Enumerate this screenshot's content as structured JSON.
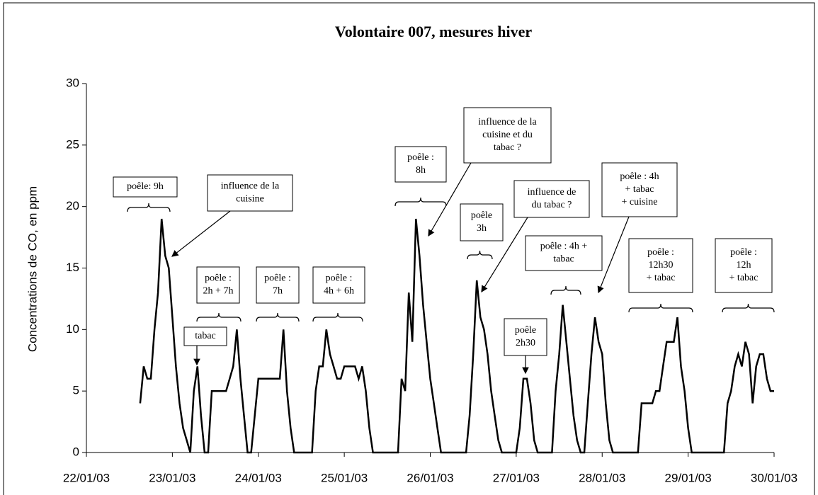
{
  "chart_data": {
    "type": "line",
    "title": "Volontaire 007, mesures hiver",
    "y_label": "Concentrations de CO, en ppm",
    "color": "#000000",
    "ylim": [
      0,
      30
    ],
    "yticks": [
      0,
      5,
      10,
      15,
      20,
      25,
      30
    ],
    "xlim": [
      "2003-01-22",
      "2003-01-30"
    ],
    "xticks": [
      {
        "value": "2003-01-22",
        "label": "22/01/03"
      },
      {
        "value": "2003-01-23",
        "label": "23/01/03"
      },
      {
        "value": "2003-01-24",
        "label": "24/01/03"
      },
      {
        "value": "2003-01-25",
        "label": "25/01/03"
      },
      {
        "value": "2003-01-26",
        "label": "26/01/03"
      },
      {
        "value": "2003-01-27",
        "label": "27/01/03"
      },
      {
        "value": "2003-01-28",
        "label": "28/01/03"
      },
      {
        "value": "2003-01-29",
        "label": "29/01/03"
      },
      {
        "value": "2003-01-30",
        "label": "30/01/03"
      }
    ],
    "x": [
      "2003-01-22T15:00",
      "2003-01-22T16:00",
      "2003-01-22T17:00",
      "2003-01-22T18:00",
      "2003-01-22T19:00",
      "2003-01-22T20:00",
      "2003-01-22T21:00",
      "2003-01-22T22:00",
      "2003-01-22T23:00",
      "2003-01-23T00:00",
      "2003-01-23T01:00",
      "2003-01-23T02:00",
      "2003-01-23T03:00",
      "2003-01-23T04:00",
      "2003-01-23T05:00",
      "2003-01-23T06:00",
      "2003-01-23T07:00",
      "2003-01-23T08:00",
      "2003-01-23T09:00",
      "2003-01-23T10:00",
      "2003-01-23T11:00",
      "2003-01-23T15:00",
      "2003-01-23T16:00",
      "2003-01-23T17:00",
      "2003-01-23T18:00",
      "2003-01-23T19:00",
      "2003-01-23T20:00",
      "2003-01-23T21:00",
      "2003-01-23T22:00",
      "2003-01-23T23:00",
      "2003-01-24T00:00",
      "2003-01-24T06:00",
      "2003-01-24T07:00",
      "2003-01-24T08:00",
      "2003-01-24T09:00",
      "2003-01-24T10:00",
      "2003-01-24T15:00",
      "2003-01-24T16:00",
      "2003-01-24T17:00",
      "2003-01-24T18:00",
      "2003-01-24T19:00",
      "2003-01-24T20:00",
      "2003-01-24T21:00",
      "2003-01-24T22:00",
      "2003-01-24T23:00",
      "2003-01-25T00:00",
      "2003-01-25T03:00",
      "2003-01-25T04:00",
      "2003-01-25T05:00",
      "2003-01-25T06:00",
      "2003-01-25T07:00",
      "2003-01-25T08:00",
      "2003-01-25T15:00",
      "2003-01-25T16:00",
      "2003-01-25T17:00",
      "2003-01-25T18:00",
      "2003-01-25T19:00",
      "2003-01-25T20:00",
      "2003-01-25T21:00",
      "2003-01-25T22:00",
      "2003-01-25T23:00",
      "2003-01-26T00:00",
      "2003-01-26T01:00",
      "2003-01-26T02:00",
      "2003-01-26T03:00",
      "2003-01-26T10:00",
      "2003-01-26T11:00",
      "2003-01-26T12:00",
      "2003-01-26T13:00",
      "2003-01-26T14:00",
      "2003-01-26T15:00",
      "2003-01-26T16:00",
      "2003-01-26T17:00",
      "2003-01-26T18:00",
      "2003-01-26T19:00",
      "2003-01-26T20:00",
      "2003-01-27T00:00",
      "2003-01-27T01:00",
      "2003-01-27T02:00",
      "2003-01-27T03:00",
      "2003-01-27T04:00",
      "2003-01-27T05:00",
      "2003-01-27T06:00",
      "2003-01-27T10:00",
      "2003-01-27T11:00",
      "2003-01-27T12:00",
      "2003-01-27T13:00",
      "2003-01-27T14:00",
      "2003-01-27T15:00",
      "2003-01-27T16:00",
      "2003-01-27T17:00",
      "2003-01-27T18:00",
      "2003-01-27T19:00",
      "2003-01-27T20:00",
      "2003-01-27T21:00",
      "2003-01-27T22:00",
      "2003-01-27T23:00",
      "2003-01-28T00:00",
      "2003-01-28T01:00",
      "2003-01-28T02:00",
      "2003-01-28T03:00",
      "2003-01-28T10:00",
      "2003-01-28T11:00",
      "2003-01-28T14:00",
      "2003-01-28T15:00",
      "2003-01-28T16:00",
      "2003-01-28T17:00",
      "2003-01-28T18:00",
      "2003-01-28T20:00",
      "2003-01-28T21:00",
      "2003-01-28T22:00",
      "2003-01-28T23:00",
      "2003-01-29T00:00",
      "2003-01-29T01:00",
      "2003-01-29T10:00",
      "2003-01-29T11:00",
      "2003-01-29T12:00",
      "2003-01-29T13:00",
      "2003-01-29T14:00",
      "2003-01-29T15:00",
      "2003-01-29T16:00",
      "2003-01-29T17:00",
      "2003-01-29T18:00",
      "2003-01-29T19:00",
      "2003-01-29T20:00",
      "2003-01-29T21:00",
      "2003-01-29T22:00",
      "2003-01-29T23:00",
      "2003-01-30T00:00"
    ],
    "values": [
      4,
      7,
      6,
      6,
      10,
      13,
      19,
      16,
      15,
      11,
      7,
      4,
      2,
      1,
      0,
      5,
      7,
      3,
      0,
      0,
      5,
      5,
      6,
      7,
      10,
      6,
      3,
      0,
      0,
      3,
      6,
      6,
      10,
      5,
      2,
      0,
      0,
      5,
      7,
      7,
      10,
      8,
      7,
      6,
      6,
      7,
      7,
      6,
      7,
      5,
      2,
      0,
      0,
      6,
      5,
      13,
      9,
      19,
      16,
      12,
      9,
      6,
      4,
      2,
      0,
      0,
      3,
      8,
      14,
      11,
      10,
      8,
      5,
      3,
      1,
      0,
      0,
      2,
      6,
      6,
      4,
      1,
      0,
      0,
      5,
      8,
      12,
      9,
      6,
      3,
      1,
      0,
      0,
      4,
      8,
      11,
      9,
      8,
      4,
      1,
      0,
      0,
      4,
      4,
      5,
      5,
      7,
      9,
      9,
      11,
      7,
      5,
      2,
      0,
      0,
      4,
      5,
      7,
      8,
      7,
      9,
      8,
      4,
      7,
      8,
      8,
      6,
      5,
      5
    ],
    "annotations": [
      [
        "poêle: 9h"
      ],
      [
        "influence de la",
        "cuisine"
      ],
      [
        "tabac"
      ],
      [
        "poêle :",
        "2h + 7h"
      ],
      [
        "poêle :",
        "7h"
      ],
      [
        "poêle :",
        "4h + 6h"
      ],
      [
        "poêle :",
        "8h"
      ],
      [
        "influence de la",
        "cuisine et du",
        "tabac ?"
      ],
      [
        "poêle",
        "3h"
      ],
      [
        "influence de",
        "du tabac ?"
      ],
      [
        "poêle :  4h  +",
        "tabac"
      ],
      [
        "poêle : 4h",
        "+ tabac",
        "+ cuisine"
      ],
      [
        "poêle",
        "2h30"
      ],
      [
        "poêle :",
        "12h30",
        "+ tabac"
      ],
      [
        "poêle :",
        "12h",
        "+ tabac"
      ]
    ]
  }
}
